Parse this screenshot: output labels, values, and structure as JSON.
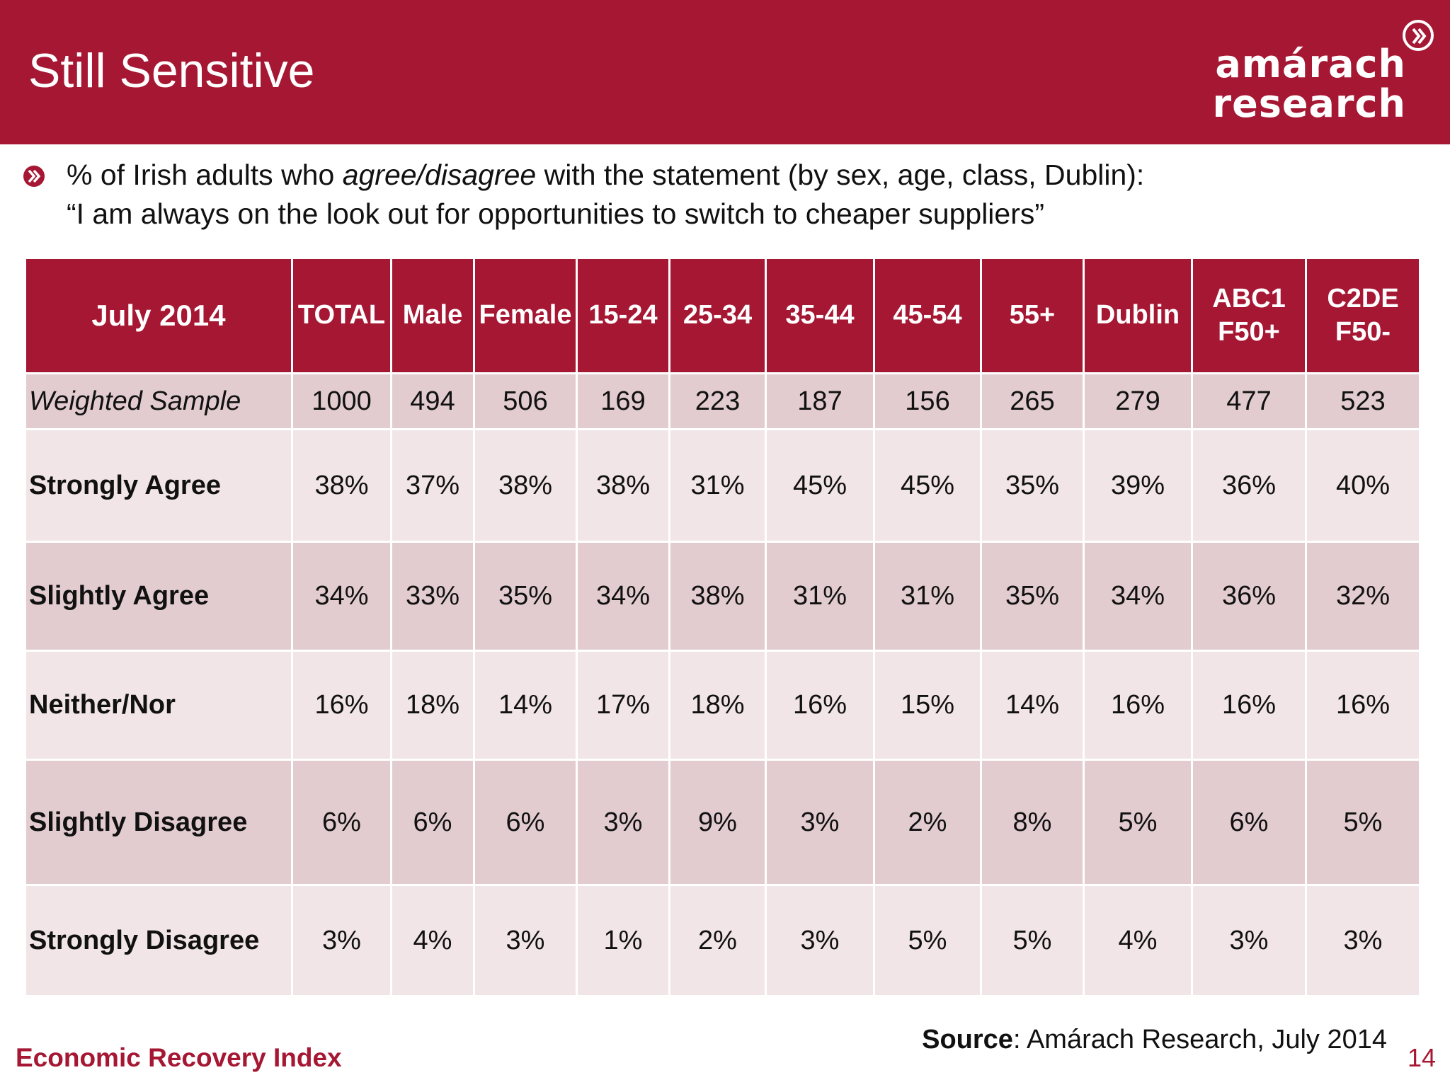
{
  "header": {
    "title": "Still Sensitive"
  },
  "logo": {
    "line1": "amárach",
    "line2": "research"
  },
  "intro": {
    "line1_pre": "% of Irish adults who ",
    "line1_em": "agree/disagree",
    "line1_post": " with the statement (by sex, age, class, Dublin):",
    "line2": "“I am always on the look out for opportunities to switch to cheaper suppliers”"
  },
  "table": {
    "corner": "July 2014",
    "columns": [
      [
        "TOTAL"
      ],
      [
        "Male"
      ],
      [
        "Female"
      ],
      [
        "15-24"
      ],
      [
        "25-34"
      ],
      [
        "35-44"
      ],
      [
        "45-54"
      ],
      [
        "55+"
      ],
      [
        "Dublin"
      ],
      [
        "ABC1",
        "F50+"
      ],
      [
        "C2DE",
        "F50-"
      ]
    ],
    "rows": [
      {
        "label": "Weighted Sample",
        "values": [
          "1000",
          "494",
          "506",
          "169",
          "223",
          "187",
          "156",
          "265",
          "279",
          "477",
          "523"
        ]
      },
      {
        "label": "Strongly Agree",
        "values": [
          "38%",
          "37%",
          "38%",
          "38%",
          "31%",
          "45%",
          "45%",
          "35%",
          "39%",
          "36%",
          "40%"
        ]
      },
      {
        "label": "Slightly Agree",
        "values": [
          "34%",
          "33%",
          "35%",
          "34%",
          "38%",
          "31%",
          "31%",
          "35%",
          "34%",
          "36%",
          "32%"
        ]
      },
      {
        "label": "Neither/Nor",
        "values": [
          "16%",
          "18%",
          "14%",
          "17%",
          "18%",
          "16%",
          "15%",
          "14%",
          "16%",
          "16%",
          "16%"
        ]
      },
      {
        "label": "Slightly Disagree",
        "values": [
          "6%",
          "6%",
          "6%",
          "3%",
          "9%",
          "3%",
          "2%",
          "8%",
          "5%",
          "6%",
          "5%"
        ]
      },
      {
        "label": "Strongly Disagree",
        "values": [
          "3%",
          "4%",
          "3%",
          "1%",
          "2%",
          "3%",
          "5%",
          "5%",
          "4%",
          "3%",
          "3%"
        ]
      }
    ]
  },
  "source": {
    "label": "Source",
    "text": ": Amárach Research, July 2014"
  },
  "footer": {
    "left": "Economic Recovery Index",
    "page": "14"
  },
  "colors": {
    "brand": "#a51733",
    "row_light": "#f1e5e7",
    "row_dark": "#e2ccd0"
  },
  "icons": {
    "bullet": "chevron-circle-icon",
    "logo_mark": "chevron-circle-icon"
  }
}
